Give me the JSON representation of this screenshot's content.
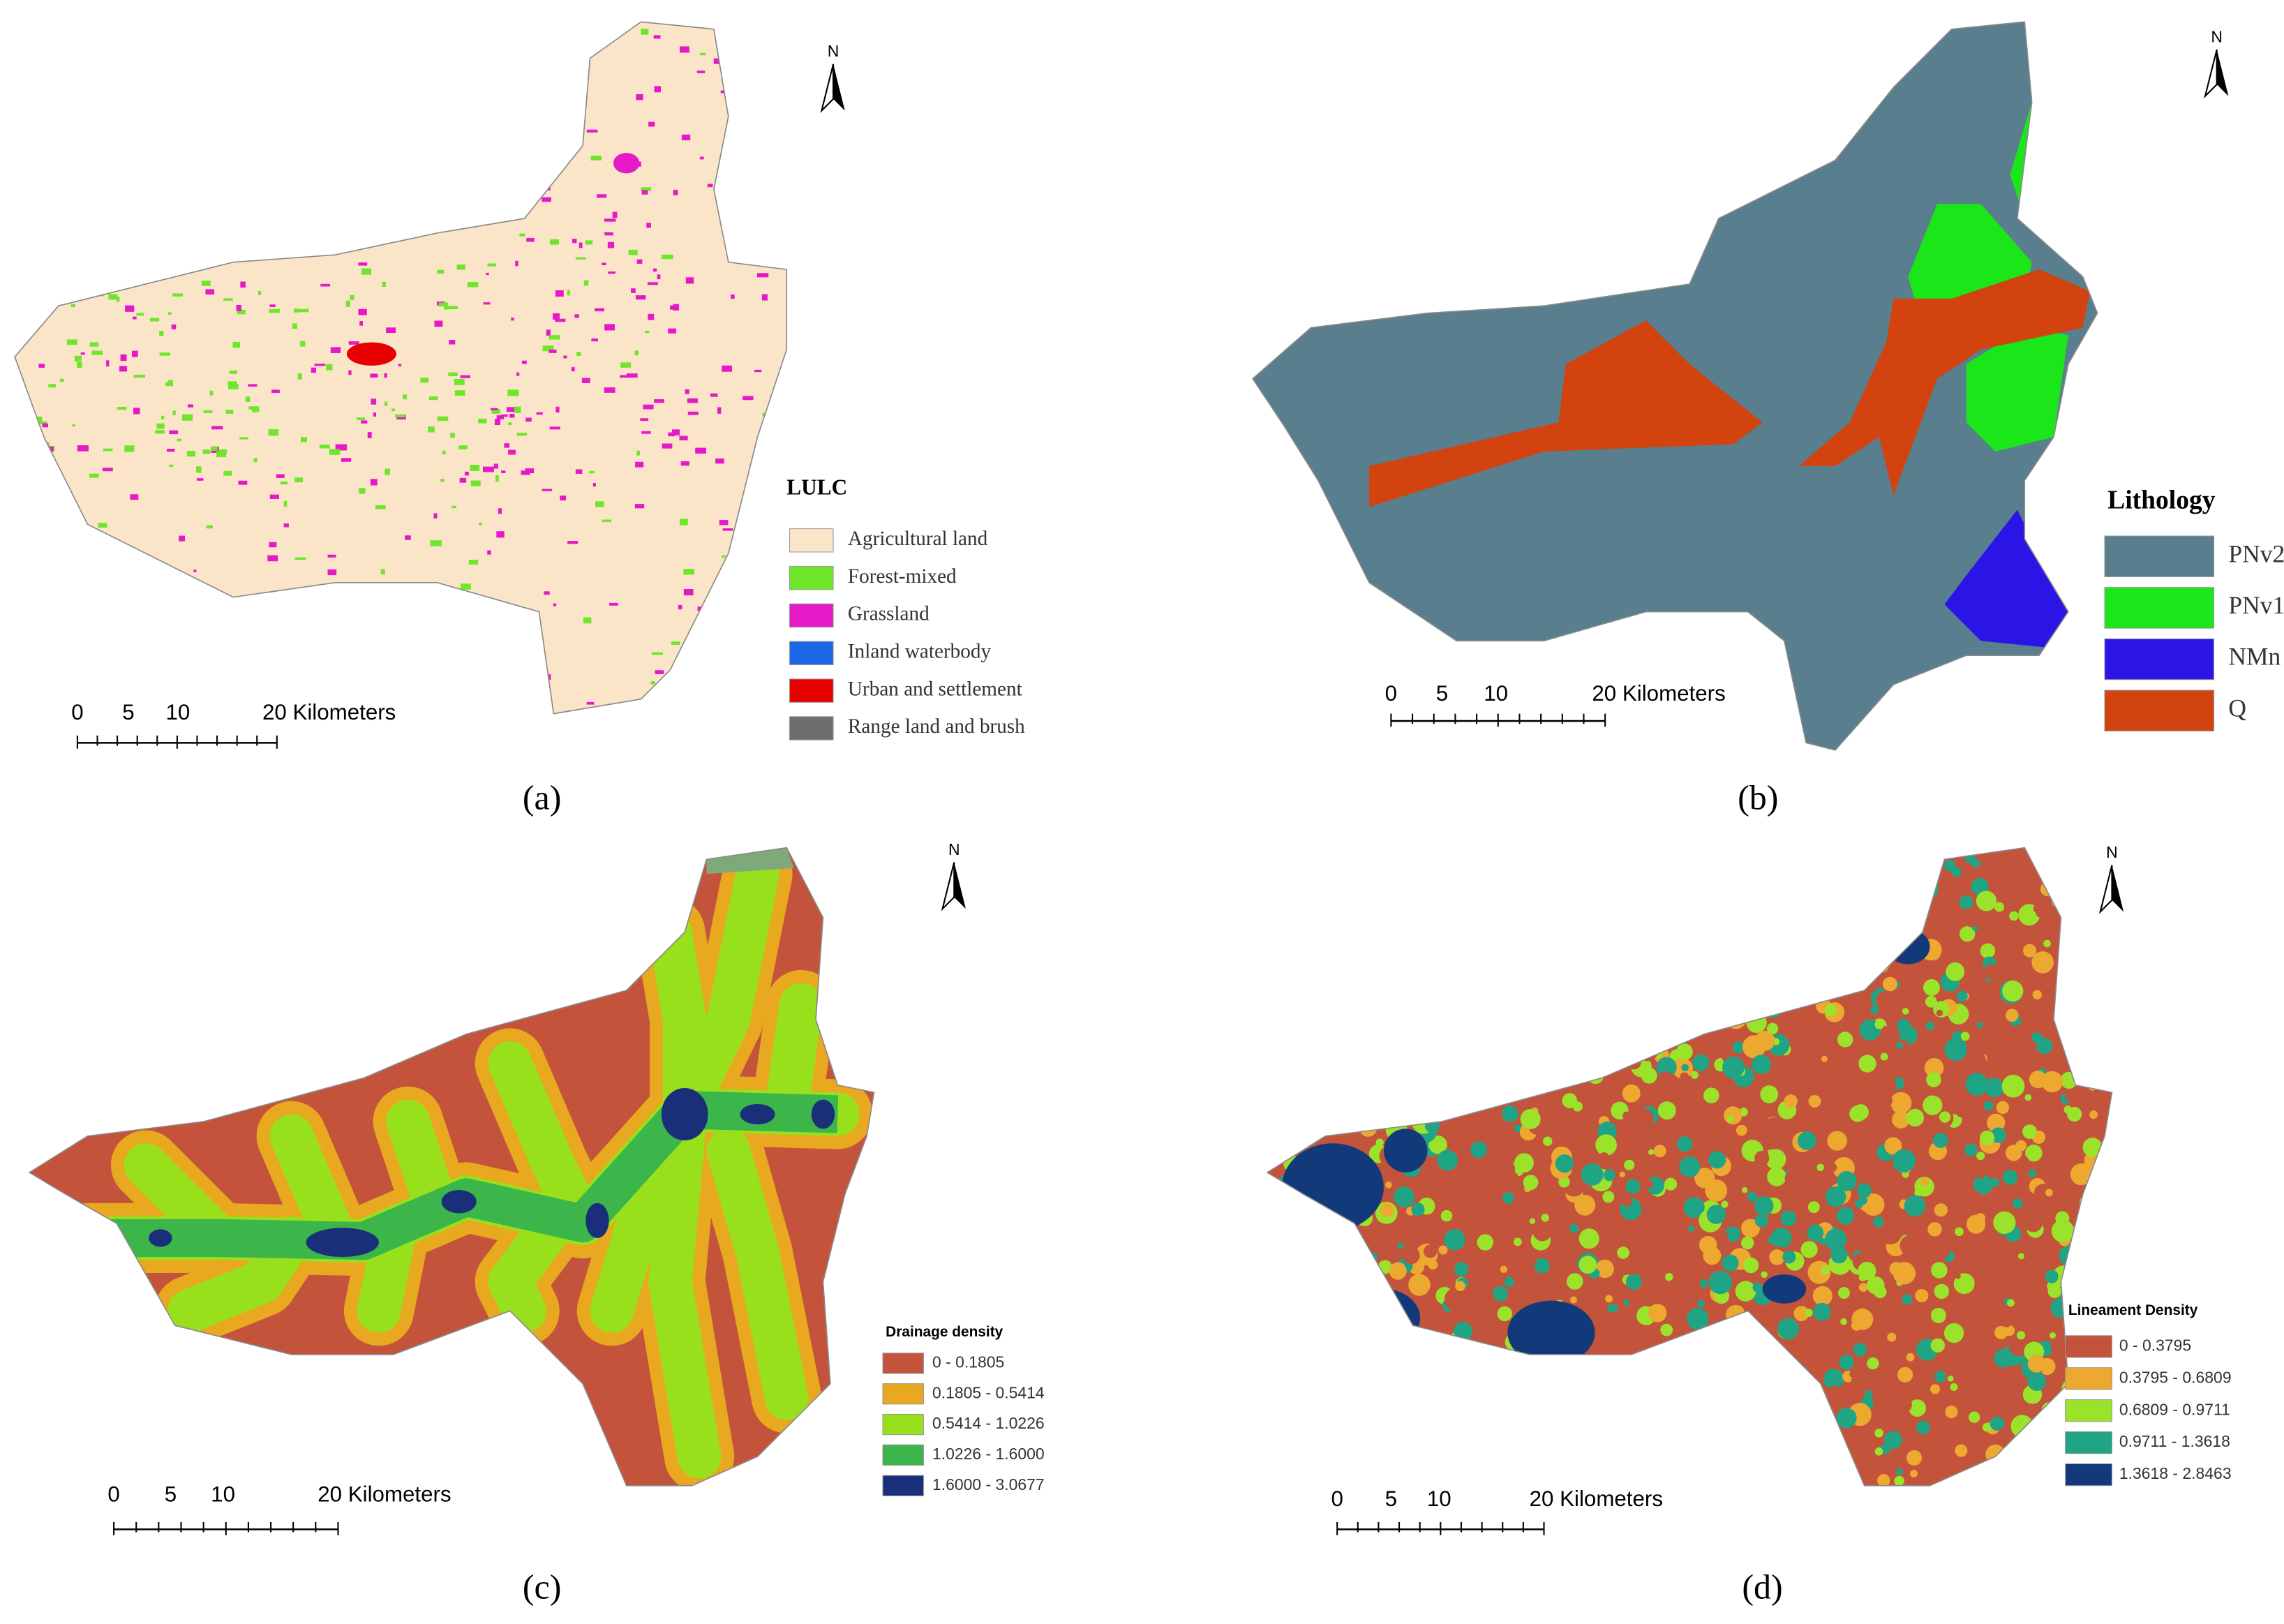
{
  "panels": [
    {
      "legend_title": "LULC",
      "legend": [
        {
          "label": "Agricultural land",
          "color": "#fbe5c8"
        },
        {
          "label": "Forest-mixed",
          "color": "#6ee62a"
        },
        {
          "label": "Grassland",
          "color": "#e619c9"
        },
        {
          "label": "Inland waterbody",
          "color": "#1a66e6"
        },
        {
          "label": "Urban and settlement",
          "color": "#e60000"
        },
        {
          "label": "Range land and brush",
          "color": "#6e6e6e"
        }
      ],
      "scale": [
        "0",
        "5",
        "10",
        "20 Kilometers"
      ],
      "north": "N",
      "caption": "(a)"
    },
    {
      "legend_title": "Lithology",
      "legend": [
        {
          "label": "PNv2",
          "color": "#597e8e"
        },
        {
          "label": "PNv1",
          "color": "#1ae61a"
        },
        {
          "label": "NMn",
          "color": "#2a14e6"
        },
        {
          "label": "Q",
          "color": "#d2430f"
        }
      ],
      "scale": [
        "0",
        "5",
        "10",
        "20 Kilometers"
      ],
      "north": "N",
      "caption": "(b)"
    },
    {
      "legend_title": "Drainage density",
      "legend": [
        {
          "label": "0 - 0.1805",
          "color": "#c4533c"
        },
        {
          "label": "0.1805 - 0.5414",
          "color": "#e8a820"
        },
        {
          "label": "0.5414 - 1.0226",
          "color": "#99e01c"
        },
        {
          "label": "1.0226 - 1.6000",
          "color": "#3cb54a"
        },
        {
          "label": "1.6000 - 3.0677",
          "color": "#1a2f7a"
        }
      ],
      "scale": [
        "0",
        "5",
        "10",
        "20 Kilometers"
      ],
      "north": "N",
      "caption": "(c)"
    },
    {
      "legend_title": "Lineament Density",
      "legend": [
        {
          "label": "0 - 0.3795",
          "color": "#c4533c"
        },
        {
          "label": "0.3795 - 0.6809",
          "color": "#eda830"
        },
        {
          "label": "0.6809 - 0.9711",
          "color": "#9be32a"
        },
        {
          "label": "0.9711 - 1.3618",
          "color": "#1fa585"
        },
        {
          "label": "1.3618 - 2.8463",
          "color": "#123a7a"
        }
      ],
      "scale": [
        "0",
        "5",
        "10",
        "20 Kilometers"
      ],
      "north": "N",
      "caption": "(d)"
    }
  ]
}
